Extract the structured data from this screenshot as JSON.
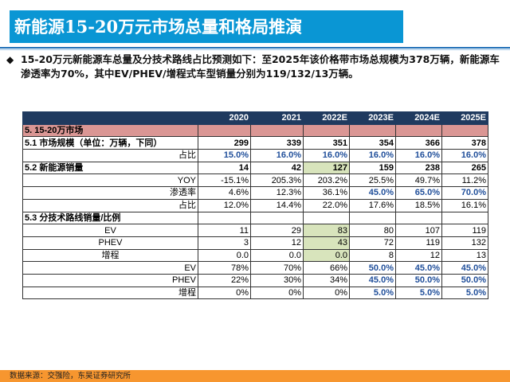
{
  "title": "新能源15-20万元市场总量和格局推演",
  "bullet": "15-20万元新能源车总量及分技术路线占比预测如下：至2025年该价格带市场总规模为378万辆，新能源车渗透率为70%，其中EV/PHEV/增程式车型销量分别为119/132/13万辆。",
  "colors": {
    "title_bg": "#0a96d4",
    "header_bg": "#1f3a5f",
    "section_bg": "#da9694",
    "highlight": "#d8e4bc",
    "forecast_blue": "#1f4e9a",
    "footer_bg": "#f7962f"
  },
  "table": {
    "columns": [
      "2020",
      "2021",
      "2022E",
      "2023E",
      "2024E",
      "2025E"
    ],
    "rows": [
      {
        "label": "5.  15-20万市场",
        "values": [
          "",
          "",
          "",
          "",
          "",
          ""
        ]
      },
      {
        "label": "5.1 市场规模（单位：万辆，下同）",
        "values": [
          "299",
          "339",
          "351",
          "354",
          "366",
          "378"
        ]
      },
      {
        "label": "占比",
        "values": [
          "15.0%",
          "16.0%",
          "16.0%",
          "16.0%",
          "16.0%",
          "16.0%"
        ]
      },
      {
        "label": "5.2 新能源销量",
        "values": [
          "14",
          "42",
          "127",
          "159",
          "238",
          "265"
        ]
      },
      {
        "label": "YOY",
        "values": [
          "-15.1%",
          "205.3%",
          "203.2%",
          "25.5%",
          "49.7%",
          "11.2%"
        ]
      },
      {
        "label": "渗透率",
        "values": [
          "4.6%",
          "12.3%",
          "36.1%",
          "45.0%",
          "65.0%",
          "70.0%"
        ]
      },
      {
        "label": "占比",
        "values": [
          "12.0%",
          "14.4%",
          "22.0%",
          "17.6%",
          "18.5%",
          "16.1%"
        ]
      },
      {
        "label": "5.3 分技术路线销量/比例",
        "values": [
          "",
          "",
          "",
          "",
          "",
          ""
        ]
      },
      {
        "label": "EV",
        "values": [
          "11",
          "29",
          "83",
          "80",
          "107",
          "119"
        ]
      },
      {
        "label": "PHEV",
        "values": [
          "3",
          "12",
          "43",
          "72",
          "119",
          "132"
        ]
      },
      {
        "label": "增程",
        "values": [
          "0.0",
          "0.0",
          "0.0",
          "8",
          "12",
          "13"
        ]
      },
      {
        "label": "EV",
        "values": [
          "78%",
          "70%",
          "66%",
          "50.0%",
          "45.0%",
          "45.0%"
        ]
      },
      {
        "label": "PHEV",
        "values": [
          "22%",
          "30%",
          "34%",
          "45.0%",
          "50.0%",
          "50.0%"
        ]
      },
      {
        "label": "增程",
        "values": [
          "0%",
          "0%",
          "0%",
          "5.0%",
          "5.0%",
          "5.0%"
        ]
      }
    ]
  },
  "footer": "数据来源：交强险，东吴证券研究所"
}
